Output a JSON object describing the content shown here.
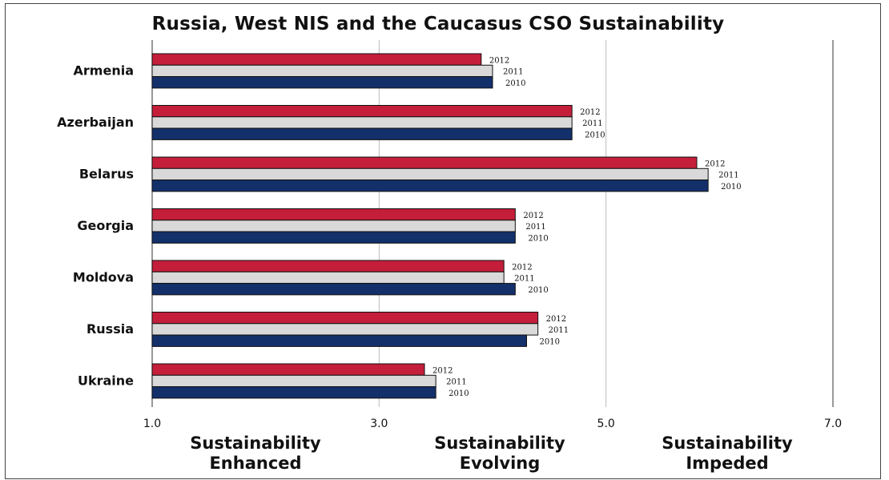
{
  "chart_data": {
    "type": "bar",
    "orientation": "horizontal",
    "title": "Russia, West NIS and the Caucasus CSO Sustainability",
    "categories": [
      "Armenia",
      "Azerbaijan",
      "Belarus",
      "Georgia",
      "Moldova",
      "Russia",
      "Ukraine"
    ],
    "series": [
      {
        "name": "2012",
        "color": "#c41e3a",
        "values": [
          3.9,
          4.7,
          5.8,
          4.2,
          4.1,
          4.4,
          3.4
        ]
      },
      {
        "name": "2011",
        "color": "#d9d9d9",
        "values": [
          4.0,
          4.7,
          5.9,
          4.2,
          4.1,
          4.4,
          3.5
        ]
      },
      {
        "name": "2010",
        "color": "#13306b",
        "values": [
          4.0,
          4.7,
          5.9,
          4.2,
          4.2,
          4.3,
          3.5
        ]
      }
    ],
    "xlim": [
      1.0,
      7.0
    ],
    "xticks": [
      "1.0",
      "3.0",
      "5.0",
      "7.0"
    ],
    "xtick_values": [
      1.0,
      3.0,
      5.0,
      7.0
    ],
    "grid": true,
    "legend": "none",
    "regions": [
      {
        "line1": "Sustainability",
        "line2": "Enhanced"
      },
      {
        "line1": "Sustainability",
        "line2": "Evolving"
      },
      {
        "line1": "Sustainability",
        "line2": "Impeded"
      }
    ]
  }
}
